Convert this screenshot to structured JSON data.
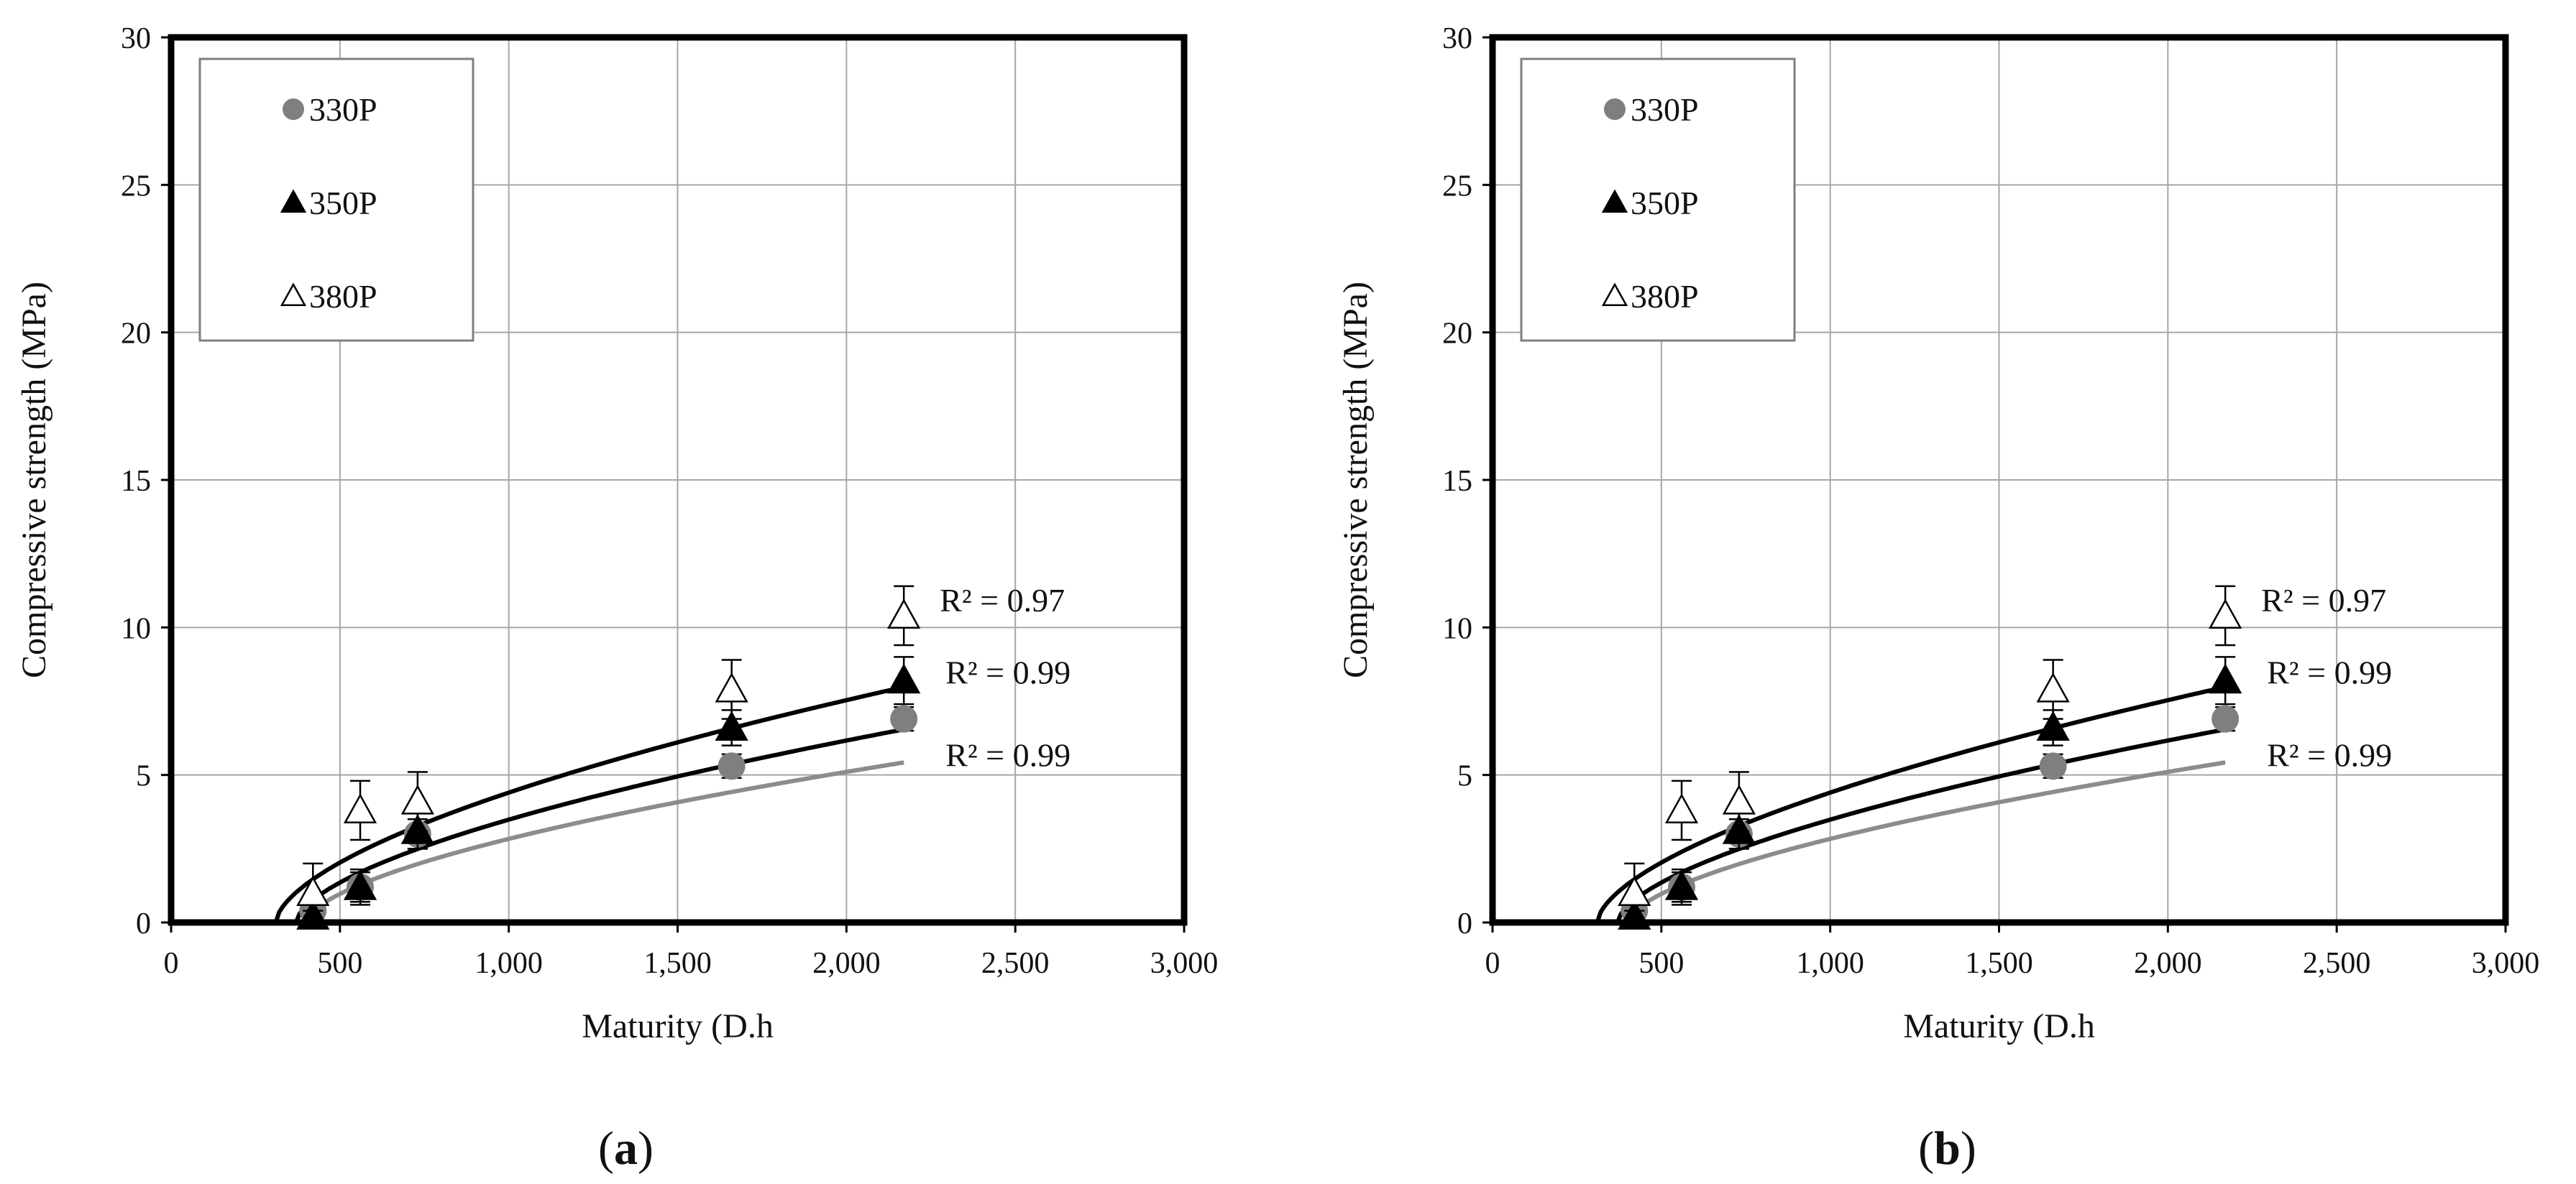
{
  "chart_data": [
    {
      "type": "scatter",
      "panel_label": "a",
      "title": "",
      "xlabel": "Maturity (D.h",
      "ylabel": "Compressive strength (MPa)",
      "xlim": [
        0,
        3000
      ],
      "ylim": [
        0,
        30
      ],
      "x_ticks": [
        0,
        500,
        1000,
        1500,
        2000,
        2500,
        3000
      ],
      "x_tick_labels": [
        "0",
        "500",
        "1,000",
        "1,500",
        "2,000",
        "2,500",
        "3,000"
      ],
      "y_ticks": [
        0,
        5,
        10,
        15,
        20,
        25,
        30
      ],
      "y_tick_labels": [
        "0",
        "5",
        "10",
        "15",
        "20",
        "25",
        "30"
      ],
      "grid": true,
      "legend_position": "top-left",
      "series": [
        {
          "name": "330P",
          "marker": "circle",
          "color": "#7f7f7f",
          "x": [
            420,
            560,
            730,
            1660,
            2170
          ],
          "y": [
            0.4,
            1.2,
            3.0,
            5.3,
            6.9
          ],
          "error": [
            0.2,
            0.5,
            0.5,
            0.4,
            0.4
          ],
          "trendline": {
            "color": "#8c8c8c",
            "a": 3.85,
            "x0": 400,
            "p": 0.6
          },
          "r2_label": "R² = 0.99"
        },
        {
          "name": "350P",
          "marker": "filled-triangle",
          "color": "#000000",
          "x": [
            420,
            560,
            730,
            1660,
            2170
          ],
          "y": [
            0.2,
            1.2,
            3.1,
            6.6,
            8.2
          ],
          "error": [
            0.2,
            0.6,
            0.6,
            0.6,
            0.8
          ],
          "trendline": {
            "color": "#000000",
            "a": 4.6,
            "x0": 370,
            "p": 0.6
          },
          "r2_label": "R² = 0.99"
        },
        {
          "name": "380P",
          "marker": "open-triangle",
          "color": "#000000",
          "x": [
            420,
            560,
            730,
            1660,
            2170
          ],
          "y": [
            1.0,
            3.8,
            4.1,
            7.9,
            10.4
          ],
          "error": [
            1.0,
            1.0,
            1.0,
            1.0,
            1.0
          ],
          "trendline": {
            "color": "#000000",
            "a": 5.5,
            "x0": 310,
            "p": 0.6
          },
          "r2_label": "R² = 0.97"
        }
      ]
    },
    {
      "type": "scatter",
      "panel_label": "b",
      "title": "",
      "xlabel": "Maturity (D.h",
      "ylabel": "Compressive strength (MPa)",
      "xlim": [
        0,
        3000
      ],
      "ylim": [
        0,
        30
      ],
      "x_ticks": [
        0,
        500,
        1000,
        1500,
        2000,
        2500,
        3000
      ],
      "x_tick_labels": [
        "0",
        "500",
        "1,000",
        "1,500",
        "2,000",
        "2,500",
        "3,000"
      ],
      "y_ticks": [
        0,
        5,
        10,
        15,
        20,
        25,
        30
      ],
      "y_tick_labels": [
        "0",
        "5",
        "10",
        "15",
        "20",
        "25",
        "30"
      ],
      "grid": true,
      "legend_position": "top-left",
      "series": [
        {
          "name": "330P",
          "marker": "circle",
          "color": "#7f7f7f",
          "x": [
            420,
            560,
            730,
            1660,
            2170
          ],
          "y": [
            0.4,
            1.2,
            3.0,
            5.3,
            6.9
          ],
          "error": [
            0.2,
            0.5,
            0.5,
            0.4,
            0.4
          ],
          "trendline": {
            "color": "#8c8c8c",
            "a": 3.85,
            "x0": 400,
            "p": 0.6
          },
          "r2_label": "R² = 0.99"
        },
        {
          "name": "350P",
          "marker": "filled-triangle",
          "color": "#000000",
          "x": [
            420,
            560,
            730,
            1660,
            2170
          ],
          "y": [
            0.2,
            1.2,
            3.1,
            6.6,
            8.2
          ],
          "error": [
            0.2,
            0.6,
            0.6,
            0.6,
            0.8
          ],
          "trendline": {
            "color": "#000000",
            "a": 4.6,
            "x0": 370,
            "p": 0.6
          },
          "r2_label": "R² = 0.99"
        },
        {
          "name": "380P",
          "marker": "open-triangle",
          "color": "#000000",
          "x": [
            420,
            560,
            730,
            1660,
            2170
          ],
          "y": [
            1.0,
            3.8,
            4.1,
            7.9,
            10.4
          ],
          "error": [
            1.0,
            1.0,
            1.0,
            1.0,
            1.0
          ],
          "trendline": {
            "color": "#000000",
            "a": 5.5,
            "x0": 310,
            "p": 0.6
          },
          "r2_label": "R² = 0.97"
        }
      ]
    }
  ]
}
